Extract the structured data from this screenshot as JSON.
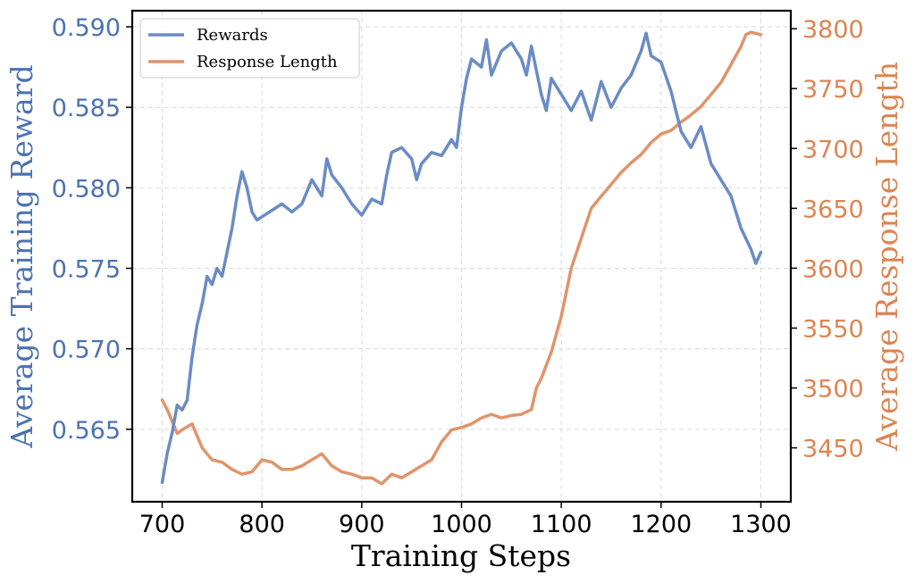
{
  "chart_data": {
    "type": "line",
    "xlabel": "Training Steps",
    "ylabel_left": "Average Training Reward",
    "ylabel_right": "Average Response Length",
    "xlim": [
      670,
      1330
    ],
    "ylim_left": [
      0.5605,
      0.591
    ],
    "ylim_right": [
      3405,
      3815
    ],
    "xticks": [
      "700",
      "800",
      "900",
      "1000",
      "1100",
      "1200",
      "1300"
    ],
    "yticks_left": [
      "0.565",
      "0.570",
      "0.575",
      "0.580",
      "0.585",
      "0.590"
    ],
    "yticks_right": [
      "3450",
      "3500",
      "3550",
      "3600",
      "3650",
      "3700",
      "3750",
      "3800"
    ],
    "grid": true,
    "legend_position": "upper-left",
    "colors": {
      "rewards": "#6a8cc4",
      "length": "#e1946a",
      "left_axis": "#4c72b0",
      "right_axis": "#dd8452"
    },
    "series": [
      {
        "name": "Rewards",
        "axis": "left",
        "x": [
          700,
          705,
          710,
          715,
          720,
          725,
          730,
          735,
          740,
          745,
          750,
          755,
          760,
          765,
          770,
          775,
          780,
          785,
          790,
          795,
          800,
          810,
          820,
          830,
          840,
          850,
          860,
          865,
          870,
          880,
          890,
          900,
          910,
          920,
          925,
          930,
          940,
          950,
          955,
          960,
          970,
          980,
          990,
          995,
          1000,
          1005,
          1010,
          1020,
          1025,
          1030,
          1040,
          1050,
          1060,
          1065,
          1070,
          1080,
          1085,
          1090,
          1100,
          1110,
          1120,
          1130,
          1140,
          1150,
          1160,
          1170,
          1180,
          1185,
          1190,
          1200,
          1210,
          1220,
          1230,
          1240,
          1250,
          1260,
          1270,
          1280,
          1290,
          1295,
          1300
        ],
        "values": [
          0.5617,
          0.5635,
          0.5648,
          0.5665,
          0.5662,
          0.5668,
          0.5695,
          0.5715,
          0.5728,
          0.5745,
          0.574,
          0.575,
          0.5745,
          0.576,
          0.5775,
          0.5795,
          0.581,
          0.58,
          0.5785,
          0.578,
          0.5782,
          0.5786,
          0.579,
          0.5785,
          0.579,
          0.5805,
          0.5795,
          0.5818,
          0.5808,
          0.58,
          0.579,
          0.5783,
          0.5793,
          0.579,
          0.5808,
          0.5822,
          0.5825,
          0.5818,
          0.5805,
          0.5815,
          0.5822,
          0.582,
          0.583,
          0.5825,
          0.585,
          0.5868,
          0.588,
          0.5875,
          0.5892,
          0.587,
          0.5885,
          0.589,
          0.588,
          0.587,
          0.5888,
          0.5858,
          0.5848,
          0.5868,
          0.5858,
          0.5848,
          0.586,
          0.5842,
          0.5866,
          0.585,
          0.5862,
          0.587,
          0.5885,
          0.5896,
          0.5882,
          0.5878,
          0.586,
          0.5835,
          0.5825,
          0.5838,
          0.5815,
          0.5805,
          0.5795,
          0.5775,
          0.5762,
          0.5753,
          0.576
        ]
      },
      {
        "name": "Response Length",
        "axis": "right",
        "x": [
          700,
          705,
          710,
          715,
          720,
          730,
          740,
          750,
          760,
          770,
          780,
          790,
          800,
          810,
          820,
          830,
          840,
          850,
          860,
          870,
          880,
          890,
          900,
          910,
          920,
          930,
          940,
          950,
          960,
          970,
          980,
          990,
          1000,
          1010,
          1020,
          1030,
          1040,
          1050,
          1060,
          1070,
          1075,
          1080,
          1090,
          1100,
          1110,
          1120,
          1130,
          1140,
          1150,
          1160,
          1170,
          1180,
          1190,
          1200,
          1210,
          1220,
          1230,
          1240,
          1250,
          1260,
          1270,
          1280,
          1285,
          1290,
          1300
        ],
        "values": [
          3490,
          3482,
          3472,
          3462,
          3465,
          3470,
          3450,
          3440,
          3438,
          3432,
          3428,
          3430,
          3440,
          3438,
          3432,
          3432,
          3435,
          3440,
          3445,
          3435,
          3430,
          3428,
          3425,
          3425,
          3420,
          3428,
          3425,
          3430,
          3435,
          3440,
          3455,
          3465,
          3467,
          3470,
          3475,
          3478,
          3475,
          3477,
          3478,
          3482,
          3500,
          3508,
          3530,
          3560,
          3600,
          3625,
          3650,
          3660,
          3670,
          3680,
          3688,
          3695,
          3705,
          3712,
          3715,
          3722,
          3728,
          3735,
          3745,
          3755,
          3770,
          3785,
          3795,
          3797,
          3795
        ]
      }
    ]
  }
}
